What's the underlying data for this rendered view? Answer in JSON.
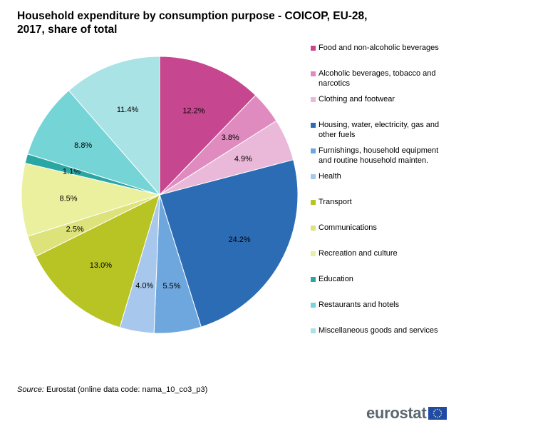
{
  "title": {
    "line1": "Household expenditure by consumption purpose - COICOP, EU-28,",
    "line2": "2017, share of total"
  },
  "source": {
    "label": "Source:",
    "text": "Eurostat (online data code: nama_10_co3_p3)"
  },
  "logo": {
    "text": "eurostat",
    "flag_icon": "eu-flag-icon"
  },
  "chart_data": {
    "type": "pie",
    "title": "Household expenditure by consumption purpose - COICOP, EU-28, 2017, share of total",
    "start_angle": "12 o'clock",
    "direction": "clockwise",
    "legend_position": "right",
    "categories": [
      "Food and non-alcoholic beverages",
      "Alcoholic beverages, tobacco and narcotics",
      "Clothing and footwear",
      "Housing, water, electricity, gas and other fuels",
      "Furnishings, household equipment and routine household mainten.",
      "Health",
      "Transport",
      "Communications",
      "Recreation and culture",
      "Education",
      "Restaurants and hotels",
      "Miscellaneous goods and services"
    ],
    "values": [
      12.2,
      3.8,
      4.9,
      24.2,
      5.5,
      4.0,
      13.0,
      2.5,
      8.5,
      1.1,
      8.8,
      11.4
    ],
    "labels": [
      "12.2%",
      "3.8%",
      "4.9%",
      "24.2%",
      "5.5%",
      "4.0%",
      "13.0%",
      "2.5%",
      "8.5%",
      "1.1%",
      "8.8%",
      "11.4%"
    ],
    "colors": [
      "#c6478f",
      "#e08bbf",
      "#eab8d8",
      "#2b6cb5",
      "#6ea6de",
      "#a7c8ec",
      "#b8c324",
      "#dde27b",
      "#ebf09e",
      "#2aa7a4",
      "#74d4d6",
      "#a9e3e6"
    ],
    "legend_labels": [
      [
        "Food and non-alcoholic beverages"
      ],
      [
        "Alcoholic beverages, tobacco and",
        "narcotics"
      ],
      [
        "Clothing and footwear"
      ],
      [
        "Housing, water, electricity, gas and",
        "other fuels"
      ],
      [
        "Furnishings, household equipment",
        "and routine household mainten."
      ],
      [
        "Health"
      ],
      [
        "Transport"
      ],
      [
        "Communications"
      ],
      [
        "Recreation and culture"
      ],
      [
        "Education"
      ],
      [
        "Restaurants and hotels"
      ],
      [
        "Miscellaneous goods and services"
      ]
    ]
  }
}
